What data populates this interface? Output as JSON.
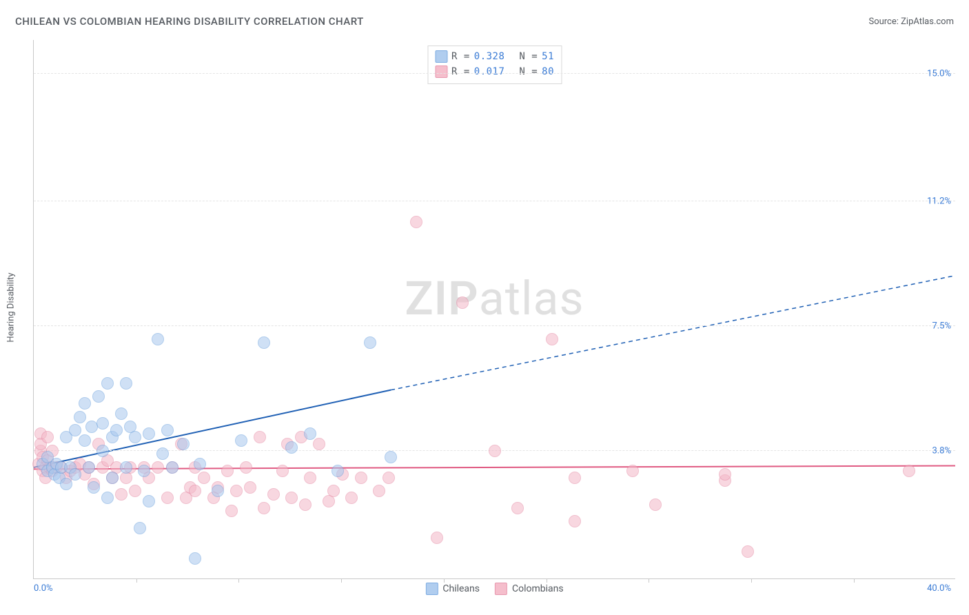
{
  "title": "CHILEAN VS COLOMBIAN HEARING DISABILITY CORRELATION CHART",
  "source": "Source: ZipAtlas.com",
  "watermark": {
    "part1": "ZIP",
    "part2": "atlas"
  },
  "y_axis": {
    "title": "Hearing Disability"
  },
  "axes": {
    "xlim": [
      0,
      40
    ],
    "ylim": [
      0,
      16
    ],
    "x_origin_label": "0.0%",
    "x_max_label": "40.0%",
    "y_ticks": [
      {
        "v": 3.8,
        "label": "3.8%"
      },
      {
        "v": 7.5,
        "label": "7.5%"
      },
      {
        "v": 11.2,
        "label": "11.2%"
      },
      {
        "v": 15.0,
        "label": "15.0%"
      }
    ],
    "x_tick_positions": [
      4.45,
      8.9,
      13.35,
      17.8,
      22.25,
      26.7,
      31.15,
      35.6
    ],
    "gridline_color": "#e4e4e4",
    "axis_color": "#c8c8c8",
    "tick_label_color": "#3a7bd5"
  },
  "series": {
    "chileans": {
      "label": "Chileans",
      "fill": "#a8c8ee",
      "stroke": "#6fa3de",
      "fill_opacity": 0.55,
      "trend_color": "#1e5fb4",
      "trend_width": 2,
      "trend": {
        "x1": 0,
        "y1": 3.3,
        "x_solid_end": 15.5,
        "y_solid_end": 5.6,
        "x2": 40,
        "y2": 9.0
      },
      "R": "0.328",
      "N": "51",
      "point_radius": 8,
      "points": [
        [
          0.4,
          3.4
        ],
        [
          0.6,
          3.2
        ],
        [
          0.6,
          3.6
        ],
        [
          0.8,
          3.3
        ],
        [
          0.9,
          3.1
        ],
        [
          1.0,
          3.4
        ],
        [
          1.1,
          3.0
        ],
        [
          1.2,
          3.3
        ],
        [
          1.4,
          2.8
        ],
        [
          1.4,
          4.2
        ],
        [
          1.6,
          3.3
        ],
        [
          1.8,
          3.1
        ],
        [
          1.8,
          4.4
        ],
        [
          2.0,
          4.8
        ],
        [
          2.2,
          4.1
        ],
        [
          2.2,
          5.2
        ],
        [
          2.4,
          3.3
        ],
        [
          2.5,
          4.5
        ],
        [
          2.6,
          2.7
        ],
        [
          2.8,
          5.4
        ],
        [
          3.0,
          4.6
        ],
        [
          3.0,
          3.8
        ],
        [
          3.2,
          2.4
        ],
        [
          3.2,
          5.8
        ],
        [
          3.4,
          3.0
        ],
        [
          3.4,
          4.2
        ],
        [
          3.6,
          4.4
        ],
        [
          3.8,
          4.9
        ],
        [
          4.0,
          3.3
        ],
        [
          4.0,
          5.8
        ],
        [
          4.2,
          4.5
        ],
        [
          4.4,
          4.2
        ],
        [
          4.6,
          1.5
        ],
        [
          4.8,
          3.2
        ],
        [
          5.0,
          2.3
        ],
        [
          5.0,
          4.3
        ],
        [
          5.4,
          7.1
        ],
        [
          5.6,
          3.7
        ],
        [
          5.8,
          4.4
        ],
        [
          6.0,
          3.3
        ],
        [
          6.5,
          4.0
        ],
        [
          7.0,
          0.6
        ],
        [
          7.2,
          3.4
        ],
        [
          8.0,
          2.6
        ],
        [
          9.0,
          4.1
        ],
        [
          10.0,
          7.0
        ],
        [
          11.2,
          3.9
        ],
        [
          12.0,
          4.3
        ],
        [
          13.2,
          3.2
        ],
        [
          14.6,
          7.0
        ],
        [
          15.5,
          3.6
        ]
      ]
    },
    "colombians": {
      "label": "Colombians",
      "fill": "#f4b7c7",
      "stroke": "#e58ca6",
      "fill_opacity": 0.55,
      "trend_color": "#e05a82",
      "trend_width": 2,
      "trend": {
        "x1": 0,
        "y1": 3.25,
        "x2": 40,
        "y2": 3.35
      },
      "R": "0.017",
      "N": "80",
      "point_radius": 8,
      "points": [
        [
          0.2,
          3.4
        ],
        [
          0.3,
          3.8
        ],
        [
          0.3,
          4.3
        ],
        [
          0.3,
          4.0
        ],
        [
          0.4,
          3.2
        ],
        [
          0.4,
          3.6
        ],
        [
          0.5,
          3.3
        ],
        [
          0.5,
          3.0
        ],
        [
          0.6,
          3.5
        ],
        [
          0.6,
          4.2
        ],
        [
          0.7,
          3.3
        ],
        [
          0.8,
          3.2
        ],
        [
          0.8,
          3.8
        ],
        [
          1.0,
          3.3
        ],
        [
          1.2,
          3.3
        ],
        [
          1.4,
          3.0
        ],
        [
          1.6,
          3.2
        ],
        [
          1.8,
          3.3
        ],
        [
          2.0,
          3.4
        ],
        [
          2.2,
          3.1
        ],
        [
          2.4,
          3.3
        ],
        [
          2.6,
          2.8
        ],
        [
          2.8,
          4.0
        ],
        [
          3.0,
          3.3
        ],
        [
          3.2,
          3.5
        ],
        [
          3.4,
          3.0
        ],
        [
          3.6,
          3.3
        ],
        [
          3.8,
          2.5
        ],
        [
          4.0,
          3.0
        ],
        [
          4.2,
          3.3
        ],
        [
          4.4,
          2.6
        ],
        [
          4.8,
          3.3
        ],
        [
          5.0,
          3.0
        ],
        [
          5.4,
          3.3
        ],
        [
          5.8,
          2.4
        ],
        [
          6.0,
          3.3
        ],
        [
          6.4,
          4.0
        ],
        [
          6.6,
          2.4
        ],
        [
          6.8,
          2.7
        ],
        [
          7.0,
          3.3
        ],
        [
          7.0,
          2.6
        ],
        [
          7.4,
          3.0
        ],
        [
          7.8,
          2.4
        ],
        [
          8.0,
          2.7
        ],
        [
          8.4,
          3.2
        ],
        [
          8.6,
          2.0
        ],
        [
          8.8,
          2.6
        ],
        [
          9.2,
          3.3
        ],
        [
          9.4,
          2.7
        ],
        [
          9.8,
          4.2
        ],
        [
          10.0,
          2.1
        ],
        [
          10.4,
          2.5
        ],
        [
          10.8,
          3.2
        ],
        [
          11.0,
          4.0
        ],
        [
          11.2,
          2.4
        ],
        [
          11.6,
          4.2
        ],
        [
          11.8,
          2.2
        ],
        [
          12.0,
          3.0
        ],
        [
          12.4,
          4.0
        ],
        [
          12.8,
          2.3
        ],
        [
          13.0,
          2.6
        ],
        [
          13.4,
          3.1
        ],
        [
          13.8,
          2.4
        ],
        [
          14.2,
          3.0
        ],
        [
          15.0,
          2.6
        ],
        [
          15.4,
          3.0
        ],
        [
          16.6,
          10.6
        ],
        [
          17.5,
          1.2
        ],
        [
          18.6,
          8.2
        ],
        [
          20.0,
          3.8
        ],
        [
          21.0,
          2.1
        ],
        [
          22.5,
          7.1
        ],
        [
          23.5,
          3.0
        ],
        [
          23.5,
          1.7
        ],
        [
          26.0,
          3.2
        ],
        [
          27.0,
          2.2
        ],
        [
          30.0,
          2.9
        ],
        [
          30.0,
          3.1
        ],
        [
          31.0,
          0.8
        ],
        [
          38.0,
          3.2
        ]
      ]
    }
  },
  "stats_box": {
    "r_label": "R =",
    "n_label": "N ="
  },
  "legend": {
    "chileans_label": "Chileans",
    "colombians_label": "Colombians"
  }
}
